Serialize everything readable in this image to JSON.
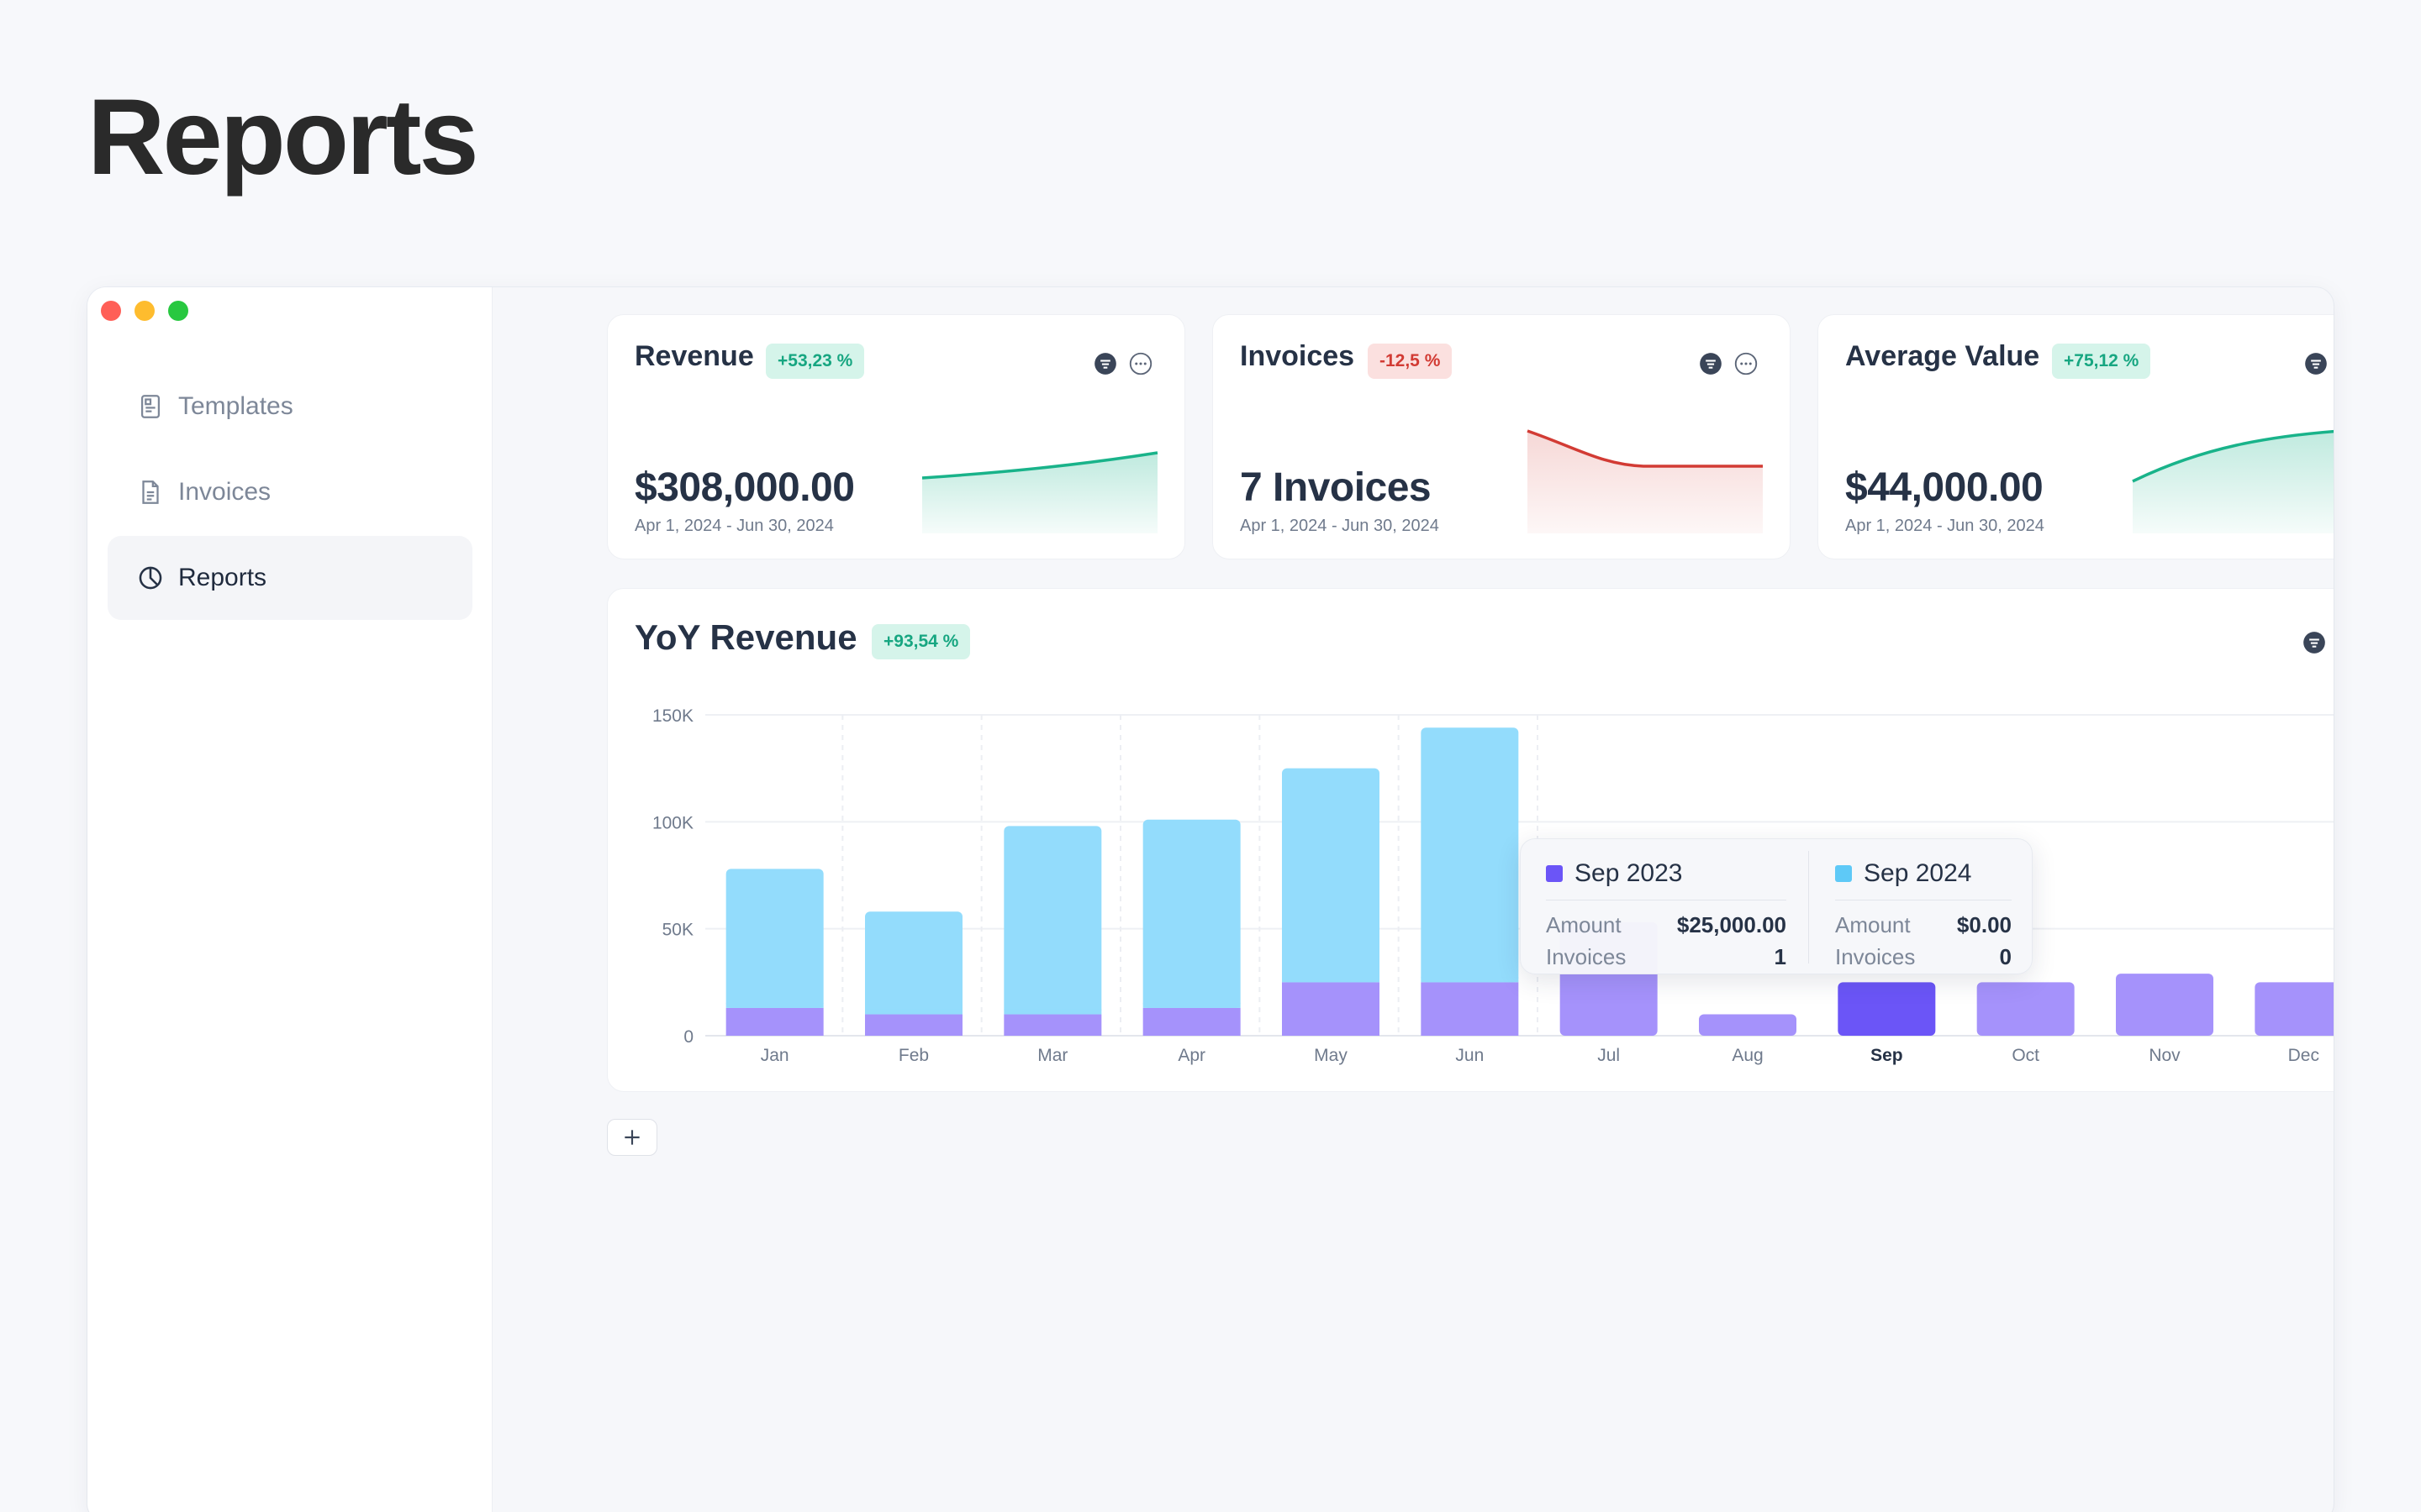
{
  "page": {
    "title": "Reports"
  },
  "sidebar": {
    "items": [
      {
        "label": "Templates",
        "icon": "template-icon",
        "active": false
      },
      {
        "label": "Invoices",
        "icon": "document-icon",
        "active": false
      },
      {
        "label": "Reports",
        "icon": "pie-chart-icon",
        "active": true
      }
    ]
  },
  "kpis": [
    {
      "title": "Revenue",
      "badge": "+53,23 %",
      "trend": "up",
      "value": "$308,000.00",
      "range": "Apr 1, 2024 - Jun 30, 2024",
      "color": "#19b38a"
    },
    {
      "title": "Invoices",
      "badge": "-12,5 %",
      "trend": "down",
      "value": "7 Invoices",
      "range": "Apr 1, 2024 - Jun 30, 2024",
      "color": "#d23b34"
    },
    {
      "title": "Average Value",
      "badge": "+75,12 %",
      "trend": "up",
      "value": "$44,000.00",
      "range": "Apr 1, 2024 - Jun 30, 2024",
      "color": "#19b38a"
    }
  ],
  "yoy": {
    "title": "YoY Revenue",
    "badge": "+93,54 %",
    "selected_month": "Sep"
  },
  "tooltip": {
    "left": {
      "label": "Sep 2023",
      "color": "#6b55f7",
      "amount_label": "Amount",
      "amount": "$25,000.00",
      "invoices_label": "Invoices",
      "invoices": "1"
    },
    "right": {
      "label": "Sep 2024",
      "color": "#5ec9f7",
      "amount_label": "Amount",
      "amount": "$0.00",
      "invoices_label": "Invoices",
      "invoices": "0"
    }
  },
  "colors": {
    "series_2023": "#a592fb",
    "series_2023_selected": "#6b55f7",
    "series_2024": "#93dcfc",
    "accent_up": "#19b38a",
    "accent_down": "#d23b34"
  },
  "chart_data": {
    "type": "bar",
    "stacked": true,
    "categories": [
      "Jan",
      "Feb",
      "Mar",
      "Apr",
      "May",
      "Jun",
      "Jul",
      "Aug",
      "Sep",
      "Oct",
      "Nov",
      "Dec"
    ],
    "series": [
      {
        "name": "Sep 2023",
        "values": [
          13000,
          10000,
          10000,
          13000,
          25000,
          25000,
          53000,
          10000,
          25000,
          25000,
          29000,
          25000
        ]
      },
      {
        "name": "Sep 2024",
        "values": [
          65000,
          48000,
          88000,
          88000,
          100000,
          119000,
          0,
          0,
          0,
          0,
          0,
          0
        ]
      }
    ],
    "y_ticks": [
      "0",
      "50K",
      "100K",
      "150K"
    ],
    "ylim": [
      0,
      150000
    ],
    "grid": true,
    "legend": "none"
  }
}
